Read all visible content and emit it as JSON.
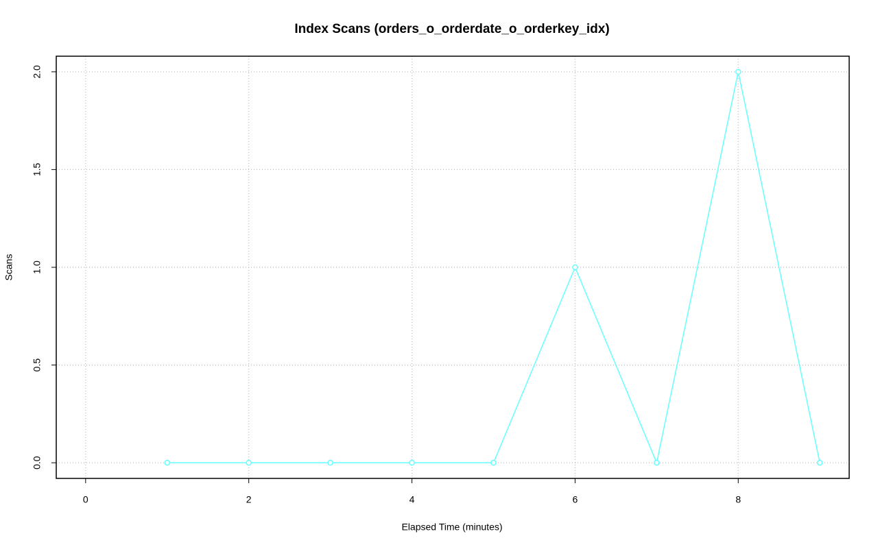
{
  "chart_data": {
    "type": "line",
    "title": "Index Scans (orders_o_orderdate_o_orderkey_idx)",
    "x_label": "Elapsed Time (minutes)",
    "y_label": "Scans",
    "x": [
      1,
      2,
      3,
      4,
      5,
      6,
      7,
      8,
      9
    ],
    "series": [
      {
        "name": "orders_o_orderdate_o_orderkey_idx",
        "color": "#66ffff",
        "values": [
          0,
          0,
          0,
          0,
          0,
          1,
          0,
          2,
          0
        ]
      }
    ],
    "xlim": [
      -0.36,
      9.36
    ],
    "ylim": [
      -0.08,
      2.08
    ],
    "xticks": [
      0,
      2,
      4,
      6,
      8
    ],
    "yticks": [
      {
        "value": 0,
        "label": "0.0"
      },
      {
        "value": 0.5,
        "label": "0.5"
      },
      {
        "value": 1,
        "label": "1.0"
      },
      {
        "value": 1.5,
        "label": "1.5"
      },
      {
        "value": 2,
        "label": "2.0"
      }
    ],
    "grid": true
  }
}
